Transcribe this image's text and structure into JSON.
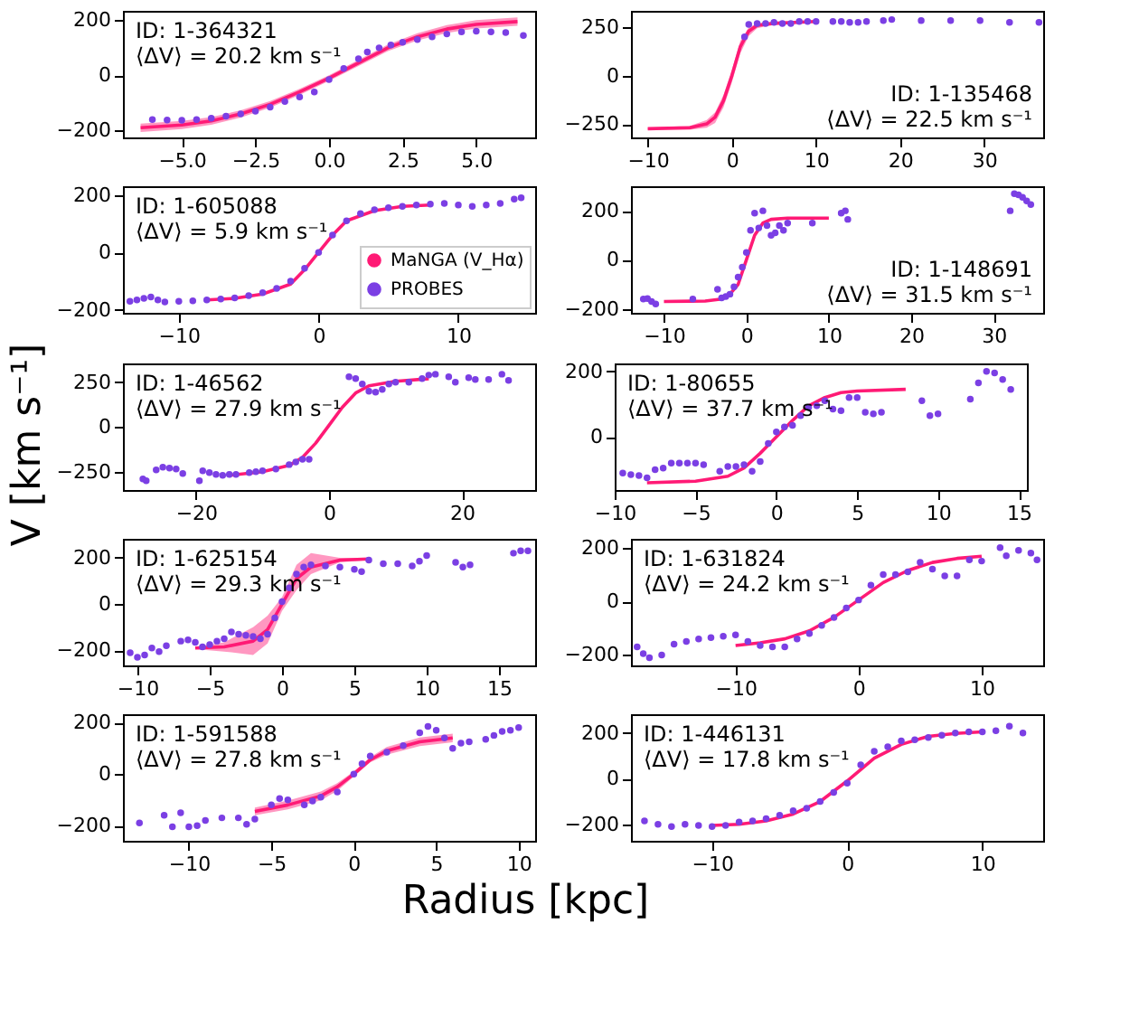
{
  "chart_data": [
    {
      "type": "scatter",
      "annotations": [
        "ID: 1-364321",
        "⟨ΔV⟩ = 20.2 km s⁻¹"
      ],
      "xlim": [
        -7,
        7
      ],
      "xticks": [
        {
          "value": -5,
          "label": "−5.0"
        },
        {
          "value": -2.5,
          "label": "−2.5"
        },
        {
          "value": 0,
          "label": "0.0"
        },
        {
          "value": 2.5,
          "label": "2.5"
        },
        {
          "value": 5,
          "label": "5.0"
        }
      ],
      "ylim": [
        -225,
        234
      ],
      "yticks": [
        -200,
        0,
        200
      ],
      "series": [
        {
          "type": "line",
          "color": "#ff1a75",
          "x": [
            -6.4,
            -5,
            -4,
            -3,
            -2,
            -1,
            0,
            1,
            2,
            3,
            4,
            5,
            6.4
          ],
          "values": [
            -190,
            -180,
            -165,
            -140,
            -105,
            -60,
            -10,
            45,
            100,
            140,
            168,
            185,
            195
          ],
          "lower": [
            -205,
            -195,
            -179,
            -153,
            -117,
            -71,
            -20,
            34,
            88,
            127,
            154,
            170,
            180
          ],
          "upper": [
            -175,
            -165,
            -151,
            -127,
            -93,
            -49,
            0,
            56,
            112,
            153,
            182,
            200,
            210
          ]
        },
        {
          "color": "#7b3fe4",
          "x": [
            -6,
            -5.5,
            -5,
            -4.5,
            -4,
            -3.5,
            -3,
            -2.5,
            -2,
            -1.5,
            -1,
            -0.5,
            0,
            0.5,
            1,
            1.3,
            1.7,
            2.1,
            2.5,
            3,
            3.5,
            4,
            4.5,
            5,
            5.5,
            6,
            6.6
          ],
          "values": [
            -160,
            -162,
            -163,
            -160,
            -155,
            -148,
            -140,
            -130,
            -115,
            -95,
            -78,
            -60,
            -15,
            25,
            60,
            85,
            100,
            110,
            120,
            130,
            140,
            150,
            158,
            160,
            158,
            155,
            145
          ]
        }
      ]
    },
    {
      "type": "scatter",
      "annotations": [
        "ID: 1-135468",
        "⟨ΔV⟩ = 22.5 km s⁻¹"
      ],
      "xlim": [
        -12,
        37
      ],
      "xticks": [
        -10,
        0,
        10,
        20,
        30
      ],
      "ylim": [
        -320,
        335
      ],
      "yticks": [
        -250,
        0,
        250
      ],
      "series": [
        {
          "type": "line",
          "color": "#ff1a75",
          "x": [
            -10,
            -5,
            -3,
            -2,
            -1,
            0,
            1,
            2,
            3,
            5,
            10
          ],
          "values": [
            -275,
            -270,
            -250,
            -215,
            -130,
            0,
            150,
            230,
            260,
            270,
            280
          ],
          "lower": [
            -280,
            -280,
            -270,
            -245,
            -165,
            -35,
            115,
            205,
            245,
            265,
            275
          ],
          "upper": [
            -270,
            -260,
            -230,
            -190,
            -100,
            30,
            180,
            250,
            270,
            280,
            280
          ]
        },
        {
          "color": "#7b3fe4",
          "x": [
            1.5,
            2,
            3,
            4,
            5,
            6,
            7,
            8,
            9,
            10,
            12,
            13,
            14,
            15,
            16,
            18,
            19,
            22.5,
            26,
            29.5,
            33,
            36.5
          ],
          "values": [
            200,
            265,
            270,
            270,
            275,
            270,
            270,
            280,
            280,
            280,
            280,
            280,
            275,
            275,
            280,
            285,
            290,
            285,
            285,
            285,
            275,
            275
          ]
        }
      ]
    },
    {
      "type": "scatter",
      "annotations": [
        "ID: 1-605088",
        "⟨ΔV⟩ = 5.9 km s⁻¹"
      ],
      "xlim": [
        -14,
        15.5
      ],
      "xticks": [
        -10,
        0,
        10
      ],
      "ylim": [
        -210,
        230
      ],
      "yticks": [
        -200,
        0,
        200
      ],
      "legend": "bottom right",
      "series": [
        {
          "type": "line",
          "name": "MaNGA (V_Hα)",
          "color": "#ff1a75",
          "x": [
            -8,
            -6,
            -4,
            -2,
            -1,
            0,
            1,
            2,
            4,
            6,
            8
          ],
          "values": [
            -165,
            -160,
            -145,
            -110,
            -60,
            0,
            60,
            110,
            145,
            160,
            165
          ]
        },
        {
          "name": "PROBES",
          "color": "#7b3fe4",
          "x": [
            -13.5,
            -13,
            -12.5,
            -12,
            -11.5,
            -11,
            -10,
            -9,
            -8,
            -7,
            -6,
            -5,
            -4,
            -3,
            -2,
            -1,
            0,
            1,
            2,
            3,
            4,
            5,
            6,
            7,
            8,
            9,
            10,
            11,
            12,
            13,
            14,
            14.5
          ],
          "values": [
            -170,
            -165,
            -160,
            -155,
            -165,
            -172,
            -170,
            -168,
            -165,
            -162,
            -158,
            -150,
            -140,
            -125,
            -100,
            -55,
            0,
            60,
            110,
            135,
            148,
            155,
            160,
            165,
            168,
            170,
            165,
            160,
            165,
            170,
            185,
            190
          ]
        }
      ]
    },
    {
      "type": "scatter",
      "annotations": [
        "ID: 1-148691",
        "⟨ΔV⟩ = 31.5 km s⁻¹"
      ],
      "xlim": [
        -14,
        36
      ],
      "xticks": [
        -10,
        0,
        10,
        20,
        30
      ],
      "ylim": [
        -216,
        300
      ],
      "yticks": [
        -200,
        0,
        200
      ],
      "series": [
        {
          "type": "line",
          "color": "#ff1a75",
          "x": [
            -10,
            -5,
            -3,
            -2,
            -1,
            0,
            1,
            2,
            3,
            5,
            10
          ],
          "values": [
            -170,
            -168,
            -160,
            -140,
            -100,
            0,
            100,
            150,
            165,
            170,
            170
          ]
        },
        {
          "color": "#7b3fe4",
          "x": [
            -12.5,
            -12,
            -11.5,
            -11,
            -6.5,
            -3.5,
            -3,
            -2.5,
            -2,
            -1.5,
            -1,
            -0.5,
            0,
            0.5,
            1,
            1.5,
            2,
            2.5,
            3,
            3.5,
            4,
            4.5,
            5,
            8,
            11.5,
            12,
            12.3,
            32,
            32.5,
            33,
            33.5,
            34,
            34.5
          ],
          "values": [
            -160,
            -158,
            -170,
            -180,
            -160,
            -120,
            -155,
            -150,
            -140,
            -110,
            -70,
            -30,
            30,
            120,
            190,
            130,
            200,
            140,
            100,
            110,
            140,
            120,
            150,
            150,
            190,
            200,
            165,
            200,
            270,
            265,
            255,
            240,
            225
          ]
        }
      ]
    },
    {
      "type": "scatter",
      "ylabel": "V [km s⁻¹]",
      "annotations": [
        "ID: 1-46562",
        "⟨ΔV⟩ = 27.9 km s⁻¹"
      ],
      "xlim": [
        -31,
        31
      ],
      "xticks": [
        -20,
        0,
        20
      ],
      "ylim": [
        -352,
        355
      ],
      "yticks": [
        -250,
        0,
        250
      ],
      "series": [
        {
          "type": "line",
          "color": "#ff1a75",
          "x": [
            -15,
            -10,
            -6,
            -4,
            -2,
            0,
            2,
            4,
            6,
            10,
            15
          ],
          "values": [
            -270,
            -250,
            -215,
            -170,
            -90,
            10,
            110,
            190,
            230,
            255,
            270
          ]
        },
        {
          "color": "#7b3fe4",
          "x": [
            -28,
            -27.5,
            -26,
            -25,
            -24,
            -23,
            -22,
            -19.5,
            -19,
            -18,
            -17,
            -16,
            -15,
            -14,
            -12,
            -11,
            -10,
            -8,
            -6,
            -5,
            -4,
            -3,
            3,
            4,
            5,
            6,
            7,
            8,
            9,
            10,
            12,
            14,
            15,
            16,
            18,
            19,
            21,
            22,
            24,
            26,
            27
          ],
          "values": [
            -290,
            -300,
            -240,
            -225,
            -230,
            -235,
            -260,
            -300,
            -245,
            -255,
            -265,
            -270,
            -265,
            -265,
            -255,
            -250,
            -245,
            -235,
            -210,
            -195,
            -180,
            -180,
            280,
            270,
            240,
            200,
            195,
            210,
            240,
            250,
            250,
            270,
            290,
            295,
            280,
            250,
            275,
            265,
            265,
            295,
            260
          ]
        }
      ]
    },
    {
      "type": "scatter",
      "annotations": [
        "ID: 1-80655",
        "⟨ΔV⟩ = 37.7 km s⁻¹"
      ],
      "xlim": [
        -10,
        15.5
      ],
      "xticks": [
        -10,
        -5,
        0,
        5,
        10,
        15
      ],
      "ylim": [
        -162,
        224
      ],
      "yticks": [
        0,
        200
      ],
      "series": [
        {
          "type": "line",
          "color": "#ff1a75",
          "x": [
            -8,
            -5,
            -3,
            -2,
            -1,
            0,
            1,
            2,
            3,
            4,
            5,
            8
          ],
          "values": [
            -140,
            -135,
            -120,
            -95,
            -50,
            0,
            50,
            95,
            120,
            135,
            140,
            145
          ]
        },
        {
          "color": "#7b3fe4",
          "x": [
            -9.5,
            -9,
            -8.5,
            -8,
            -7.5,
            -7,
            -6.5,
            -6,
            -5.5,
            -5,
            -4.5,
            -3.5,
            -3,
            -2.5,
            -2,
            -1.5,
            -1,
            -0.5,
            0,
            0.5,
            1,
            1.5,
            2,
            2.5,
            3,
            3.5,
            4,
            4.5,
            5,
            5.5,
            6,
            6.5,
            9,
            9.5,
            10,
            12,
            12.5,
            13,
            13.5,
            14,
            14.5
          ],
          "values": [
            -110,
            -115,
            -118,
            -125,
            -100,
            -95,
            -80,
            -80,
            -80,
            -80,
            -85,
            -105,
            -90,
            -90,
            -85,
            -105,
            -75,
            -20,
            15,
            30,
            35,
            65,
            90,
            95,
            110,
            85,
            80,
            120,
            120,
            75,
            70,
            75,
            110,
            65,
            70,
            115,
            165,
            200,
            195,
            175,
            145
          ]
        }
      ]
    },
    {
      "type": "scatter",
      "annotations": [
        "ID: 1-625154",
        "⟨ΔV⟩ = 29.3 km s⁻¹"
      ],
      "xlim": [
        -11,
        17.5
      ],
      "xticks": [
        -10,
        -5,
        0,
        5,
        10,
        15
      ],
      "ylim": [
        -265,
        282
      ],
      "yticks": [
        -200,
        0,
        200
      ],
      "series": [
        {
          "type": "line",
          "color": "#ff1a75",
          "x": [
            -6,
            -4,
            -2,
            -1,
            0,
            1,
            2,
            4,
            6
          ],
          "values": [
            -190,
            -185,
            -160,
            -110,
            0,
            110,
            160,
            190,
            195
          ],
          "lower": [
            -195,
            -205,
            -220,
            -170,
            -30,
            60,
            130,
            180,
            190
          ],
          "upper": [
            -185,
            -165,
            -100,
            -50,
            30,
            170,
            220,
            200,
            200
          ]
        },
        {
          "color": "#7b3fe4",
          "x": [
            -10.5,
            -10,
            -9.5,
            -9,
            -8.5,
            -8,
            -7,
            -6.5,
            -6,
            -5.5,
            -5,
            -4.5,
            -4,
            -3.5,
            -3,
            -2.5,
            -2,
            -1.5,
            -1,
            -0.5,
            0,
            0.5,
            1,
            1.5,
            2,
            3,
            4,
            5,
            5.5,
            6,
            7,
            8,
            9,
            9.5,
            10,
            12,
            12.5,
            13,
            16,
            16.5,
            17
          ],
          "values": [
            -210,
            -230,
            -220,
            -190,
            -205,
            -180,
            -160,
            -155,
            -165,
            -185,
            -175,
            -160,
            -150,
            -120,
            -130,
            -135,
            -140,
            -150,
            -130,
            -60,
            10,
            70,
            130,
            160,
            170,
            165,
            160,
            150,
            140,
            190,
            175,
            175,
            165,
            185,
            210,
            180,
            160,
            170,
            220,
            230,
            230
          ]
        }
      ]
    },
    {
      "type": "scatter",
      "annotations": [
        "ID: 1-631824",
        "⟨ΔV⟩ = 24.2 km s⁻¹"
      ],
      "xlim": [
        -18.5,
        15
      ],
      "xticks": [
        -10,
        0,
        10
      ],
      "ylim": [
        -239,
        233
      ],
      "yticks": [
        -200,
        0,
        200
      ],
      "series": [
        {
          "type": "line",
          "color": "#ff1a75",
          "x": [
            -10,
            -8,
            -6,
            -4,
            -2,
            0,
            2,
            4,
            6,
            8,
            10
          ],
          "values": [
            -165,
            -155,
            -140,
            -110,
            -60,
            5,
            70,
            115,
            145,
            160,
            168
          ]
        },
        {
          "color": "#7b3fe4",
          "x": [
            -18,
            -17.5,
            -17,
            -16,
            -15,
            -14,
            -13,
            -12,
            -11,
            -10,
            -9,
            -8,
            -7,
            -6,
            -5,
            -4,
            -3,
            -2,
            -1,
            0,
            1,
            2,
            3,
            4,
            5,
            6,
            7,
            8,
            9,
            10,
            11.5,
            12,
            13,
            14,
            14.5
          ],
          "values": [
            -170,
            -195,
            -210,
            -200,
            -160,
            -150,
            -140,
            -135,
            -130,
            -125,
            -150,
            -165,
            -170,
            -170,
            -140,
            -120,
            -90,
            -60,
            -25,
            5,
            60,
            100,
            100,
            110,
            145,
            120,
            95,
            95,
            155,
            150,
            200,
            170,
            190,
            180,
            155
          ]
        }
      ]
    },
    {
      "type": "scatter",
      "xlabel": "Radius [kpc]",
      "annotations": [
        "ID: 1-591588",
        "⟨ΔV⟩ = 27.8 km s⁻¹"
      ],
      "xlim": [
        -14,
        11
      ],
      "xticks": [
        -10,
        -5,
        0,
        5,
        10
      ],
      "ylim": [
        -259,
        232
      ],
      "yticks": [
        -200,
        0,
        200
      ],
      "series": [
        {
          "type": "line",
          "color": "#ff1a75",
          "x": [
            -6,
            -4,
            -2,
            -1,
            0,
            1,
            2,
            4,
            6
          ],
          "values": [
            -145,
            -120,
            -85,
            -50,
            0,
            55,
            90,
            125,
            140
          ],
          "lower": [
            -160,
            -137,
            -102,
            -65,
            -10,
            45,
            75,
            108,
            123
          ],
          "upper": [
            -130,
            -103,
            -68,
            -35,
            10,
            65,
            105,
            142,
            157
          ]
        },
        {
          "color": "#7b3fe4",
          "x": [
            -13,
            -11.5,
            -11,
            -10.5,
            -10,
            -9.5,
            -9,
            -8,
            -7,
            -6.5,
            -6,
            -5,
            -4.5,
            -4,
            -3,
            -2.5,
            -2,
            -1,
            0,
            0.5,
            1,
            2,
            3,
            4,
            4.5,
            5,
            5.5,
            6,
            6.5,
            7,
            8,
            8.5,
            9,
            9.5,
            10
          ],
          "values": [
            -190,
            -160,
            -205,
            -150,
            -205,
            -200,
            -180,
            -170,
            -170,
            -195,
            -175,
            -120,
            -95,
            -100,
            -120,
            -105,
            -90,
            -70,
            0,
            40,
            70,
            85,
            110,
            160,
            185,
            170,
            140,
            100,
            120,
            125,
            135,
            150,
            165,
            170,
            180
          ]
        }
      ]
    },
    {
      "type": "scatter",
      "annotations": [
        "ID: 1-446131",
        "⟨ΔV⟩ = 17.8 km s⁻¹"
      ],
      "xlim": [
        -16,
        14.5
      ],
      "xticks": [
        -10,
        0,
        10
      ],
      "ylim": [
        -272,
        282
      ],
      "yticks": [
        -200,
        0,
        200
      ],
      "series": [
        {
          "type": "line",
          "color": "#ff1a75",
          "x": [
            -10,
            -8,
            -6,
            -4,
            -2,
            0,
            2,
            4,
            6,
            8,
            10
          ],
          "values": [
            -205,
            -200,
            -185,
            -155,
            -100,
            -10,
            90,
            150,
            185,
            198,
            205
          ]
        },
        {
          "color": "#7b3fe4",
          "x": [
            -15,
            -14,
            -13,
            -12,
            -11,
            -10,
            -9,
            -8,
            -7,
            -6,
            -5,
            -4,
            -3,
            -2,
            -1,
            0,
            1,
            2,
            3,
            4,
            5,
            6,
            7,
            8,
            9,
            10,
            11,
            12,
            13
          ],
          "values": [
            -185,
            -200,
            -210,
            -200,
            -205,
            -210,
            -205,
            -190,
            -185,
            -175,
            -160,
            -140,
            -130,
            -100,
            -60,
            -20,
            60,
            120,
            140,
            165,
            170,
            180,
            190,
            200,
            205,
            205,
            210,
            230,
            200
          ]
        }
      ]
    }
  ]
}
